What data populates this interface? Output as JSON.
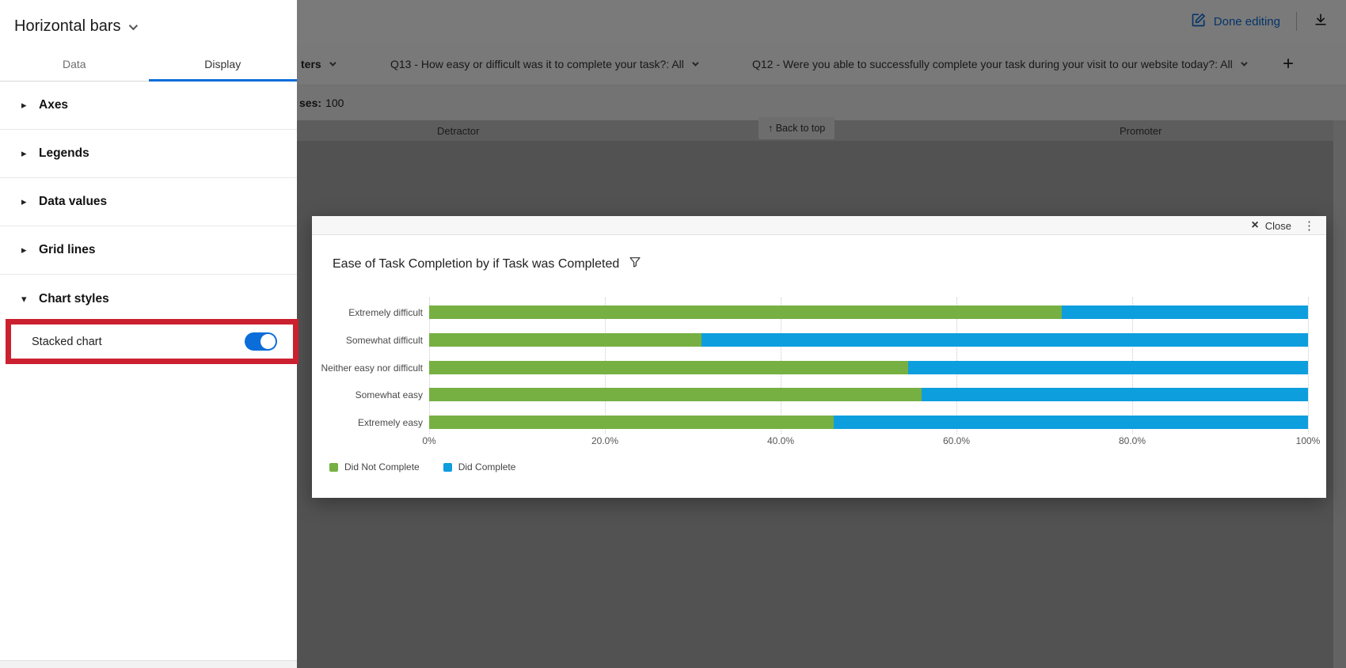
{
  "panel": {
    "title": "Horizontal bars",
    "tabs": {
      "data": "Data",
      "display": "Display"
    },
    "sections": [
      {
        "label": "Axes",
        "expanded": false
      },
      {
        "label": "Legends",
        "expanded": false
      },
      {
        "label": "Data values",
        "expanded": false
      },
      {
        "label": "Grid lines",
        "expanded": false
      },
      {
        "label": "Chart styles",
        "expanded": true
      }
    ],
    "stacked_chart_label": "Stacked chart",
    "stacked_chart_enabled": true
  },
  "topbar": {
    "done_editing": "Done editing"
  },
  "filterbar": {
    "filters_partial": "ters",
    "q13_filter": "Q13 - How easy or difficult was it to complete your task?: All",
    "q12_filter": "Q12 - Were you able to successfully complete your task during your visit to our website today?: All",
    "add_filter": "+",
    "responses_partial_label": "ses:",
    "responses_value": "100"
  },
  "background": {
    "col_detractor": "Detractor",
    "back_to_top": "↑ Back to top",
    "col_promoter": "Promoter"
  },
  "modal": {
    "close_label": "Close",
    "kebab": "⋮"
  },
  "colors": {
    "accent_blue": "#0b6dd9",
    "highlight_red": "#cb2030",
    "series_green": "#76b043",
    "series_blue": "#0d9ede"
  },
  "chart_data": {
    "type": "bar",
    "orientation": "horizontal",
    "stacked": true,
    "title": "Ease of Task Completion by if Task was Completed",
    "categories": [
      "Extremely difficult",
      "Somewhat difficult",
      "Neither easy nor difficult",
      "Somewhat easy",
      "Extremely easy"
    ],
    "series": [
      {
        "name": "Did Not Complete",
        "color": "#76b043",
        "values": [
          72,
          31,
          54.5,
          56,
          46
        ]
      },
      {
        "name": "Did Complete",
        "color": "#0d9ede",
        "values": [
          28,
          69,
          45.5,
          44,
          54
        ]
      }
    ],
    "x_ticks": [
      "0%",
      "20.0%",
      "40.0%",
      "60.0%",
      "80.0%",
      "100%"
    ],
    "xlim": [
      0,
      100
    ],
    "gridlines": "dotted vertical every 20%",
    "legend_position": "bottom-left"
  }
}
